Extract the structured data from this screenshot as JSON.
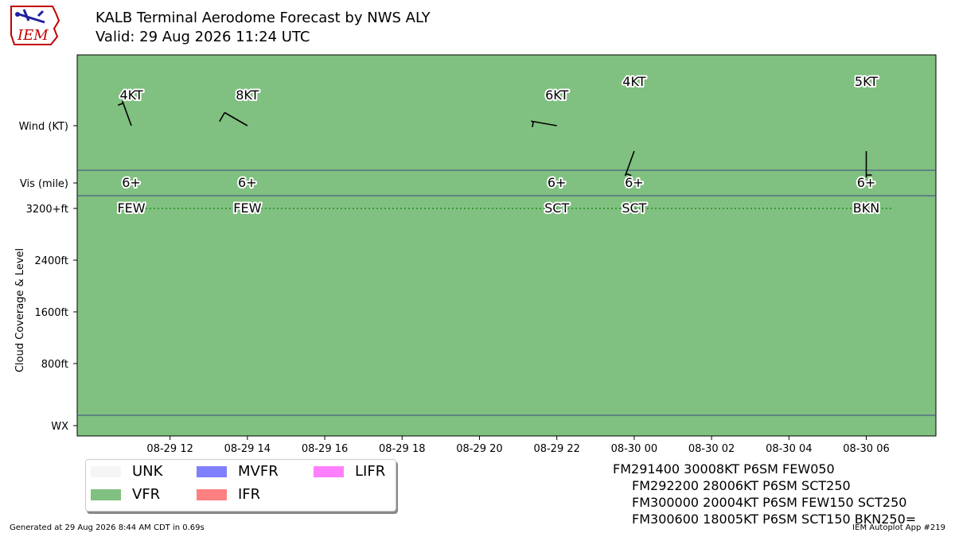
{
  "header": {
    "title": "KALB Terminal Aerodome Forecast by NWS ALY",
    "subtitle": "Valid: 29 Aug 2026 11:24 UTC",
    "logo_text": "IEM"
  },
  "chart_data": {
    "type": "scatter",
    "x_ticks": [
      "08-29 12",
      "08-29 14",
      "08-29 16",
      "08-29 18",
      "08-29 20",
      "08-29 22",
      "08-30 00",
      "08-30 02",
      "08-30 04",
      "08-30 06"
    ],
    "x_tick_hours": [
      12,
      14,
      16,
      18,
      20,
      22,
      24,
      26,
      28,
      30
    ],
    "x_range_hours": [
      9.6,
      31.8
    ],
    "y_ticks": [
      "Wind (KT)",
      "Vis (mile)",
      "3200+ft",
      "2400ft",
      "1600ft",
      "800ft",
      "WX"
    ],
    "ylabel": "Cloud Coverage & Level",
    "category": "VFR",
    "forecasts": [
      {
        "hour": 11.0,
        "wind_dir": 340,
        "wind_kt": 4,
        "wind_label": "4KT",
        "vis_label": "6+",
        "cloud_label": "FEW"
      },
      {
        "hour": 14.0,
        "wind_dir": 300,
        "wind_kt": 8,
        "wind_label": "8KT",
        "vis_label": "6+",
        "cloud_label": "FEW"
      },
      {
        "hour": 22.0,
        "wind_dir": 280,
        "wind_kt": 6,
        "wind_label": "6KT",
        "vis_label": "6+",
        "cloud_label": "SCT"
      },
      {
        "hour": 24.0,
        "wind_dir": 200,
        "wind_kt": 4,
        "wind_label": "4KT",
        "vis_label": "6+",
        "cloud_label": "SCT"
      },
      {
        "hour": 30.0,
        "wind_dir": 180,
        "wind_kt": 5,
        "wind_label": "5KT",
        "vis_label": "6+",
        "cloud_label": "BKN"
      }
    ],
    "legend": [
      {
        "label": "UNK",
        "color": "#f5f5f5"
      },
      {
        "label": "VFR",
        "color": "#80c080"
      },
      {
        "label": "MVFR",
        "color": "#8080ff"
      },
      {
        "label": "IFR",
        "color": "#ff8080"
      },
      {
        "label": "LIFR",
        "color": "#ff80ff"
      }
    ],
    "colors": {
      "vfr_fill": "#80c080",
      "cloud_line": "#228B22",
      "divider": "#3b4a8a"
    }
  },
  "taf_text": [
    "FM291400 30008KT P6SM FEW050",
    "FM292200 28006KT P6SM SCT250",
    "FM300000 20004KT P6SM FEW150 SCT250",
    "FM300600 18005KT P6SM SCT150 BKN250="
  ],
  "footer": {
    "generated": "Generated at 29 Aug 2026 8:44 AM CDT in 0.69s",
    "app": "IEM Autoplot App #219"
  }
}
